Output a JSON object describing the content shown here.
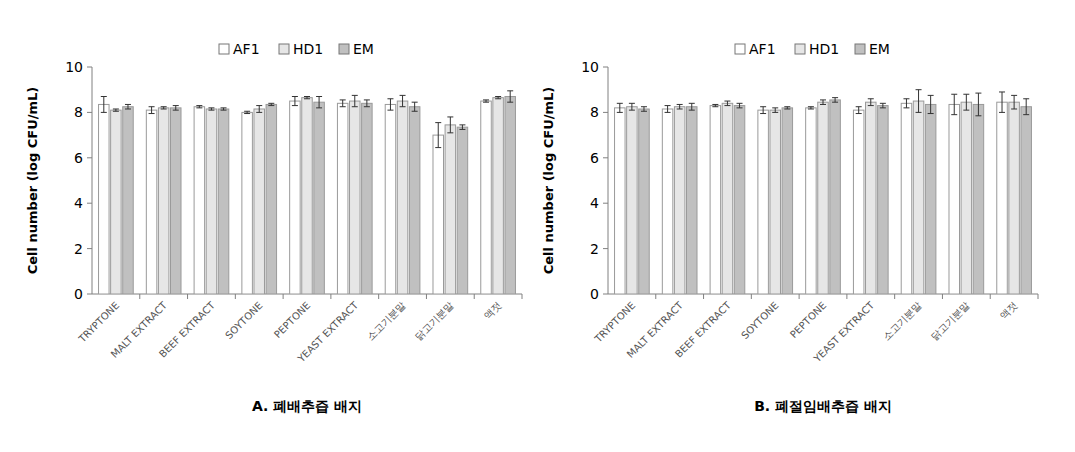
{
  "chart_data": [
    {
      "type": "bar",
      "title": "A. 폐배추즙 배지",
      "ylabel": "Cell number (log CFU/mL)",
      "categories": [
        "TRYPTONE",
        "MALT EXTRACT",
        "BEEF EXTRACT",
        "SOYTONE",
        "PEPTONE",
        "YEAST EXTRACT",
        "소고기분말",
        "닭고기분말",
        "액젓"
      ],
      "series": [
        {
          "name": "AF1",
          "color": "#ffffff",
          "values": [
            8.35,
            8.1,
            8.25,
            8.0,
            8.5,
            8.4,
            8.35,
            7.0,
            8.5
          ],
          "errors": [
            0.35,
            0.15,
            0.05,
            0.05,
            0.2,
            0.15,
            0.25,
            0.55,
            0.05
          ]
        },
        {
          "name": "HD1",
          "color": "#e6e6e6",
          "values": [
            8.1,
            8.2,
            8.15,
            8.15,
            8.65,
            8.5,
            8.5,
            7.45,
            8.65
          ],
          "errors": [
            0.05,
            0.05,
            0.05,
            0.15,
            0.05,
            0.25,
            0.25,
            0.35,
            0.05
          ]
        },
        {
          "name": "EM",
          "color": "#c0c0c0",
          "values": [
            8.25,
            8.2,
            8.15,
            8.35,
            8.45,
            8.4,
            8.25,
            7.35,
            8.7
          ],
          "errors": [
            0.1,
            0.1,
            0.05,
            0.05,
            0.25,
            0.15,
            0.2,
            0.1,
            0.25
          ]
        }
      ],
      "ylim": [
        0,
        10
      ],
      "yticks": [
        0,
        2,
        4,
        6,
        8,
        10
      ],
      "grid": false,
      "legend": "top"
    },
    {
      "type": "bar",
      "title": "B. 폐절임배추즙 배지",
      "ylabel": "Cell number (log CFU/mL)",
      "categories": [
        "TRYPTONE",
        "MALT EXTRACT",
        "BEEF EXTRACT",
        "SOYTONE",
        "PEPTONE",
        "YEAST EXTRACT",
        "소고기분말",
        "닭고기분말",
        "액젓"
      ],
      "series": [
        {
          "name": "AF1",
          "color": "#ffffff",
          "values": [
            8.2,
            8.15,
            8.3,
            8.1,
            8.2,
            8.1,
            8.4,
            8.35,
            8.45
          ],
          "errors": [
            0.2,
            0.15,
            0.05,
            0.15,
            0.05,
            0.15,
            0.2,
            0.45,
            0.45
          ]
        },
        {
          "name": "HD1",
          "color": "#e6e6e6",
          "values": [
            8.25,
            8.25,
            8.4,
            8.1,
            8.45,
            8.45,
            8.5,
            8.45,
            8.45
          ],
          "errors": [
            0.15,
            0.1,
            0.1,
            0.1,
            0.1,
            0.15,
            0.5,
            0.35,
            0.3
          ]
        },
        {
          "name": "EM",
          "color": "#c0c0c0",
          "values": [
            8.15,
            8.25,
            8.3,
            8.2,
            8.55,
            8.3,
            8.35,
            8.35,
            8.25
          ],
          "errors": [
            0.1,
            0.15,
            0.1,
            0.05,
            0.1,
            0.1,
            0.4,
            0.5,
            0.35
          ]
        }
      ],
      "ylim": [
        0,
        10
      ],
      "yticks": [
        0,
        2,
        4,
        6,
        8,
        10
      ],
      "grid": false,
      "legend": "top"
    }
  ]
}
